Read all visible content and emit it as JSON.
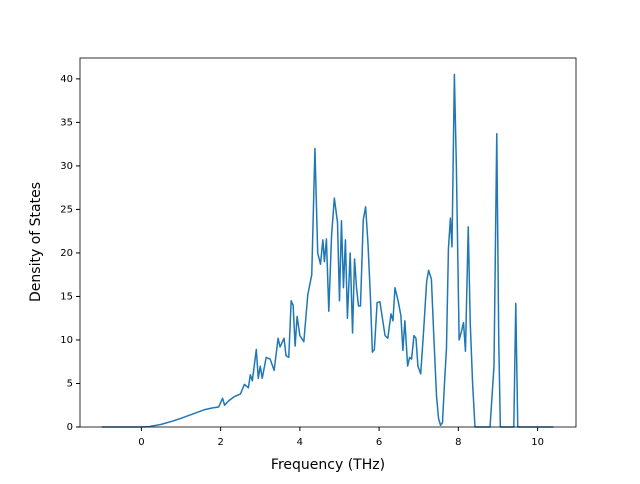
{
  "chart_data": {
    "type": "line",
    "x_label": "Frequency (THz)",
    "y_label": "Density of States",
    "series": [
      {
        "color": "#1f77b4",
        "x": [
          -1.0,
          -0.5,
          0,
          0.2,
          0.5,
          0.8,
          1.0,
          1.3,
          1.6,
          1.8,
          1.95,
          2.05,
          2.1,
          2.2,
          2.35,
          2.5,
          2.6,
          2.7,
          2.75,
          2.8,
          2.9,
          2.95,
          3.0,
          3.05,
          3.15,
          3.25,
          3.35,
          3.45,
          3.5,
          3.6,
          3.65,
          3.72,
          3.78,
          3.83,
          3.88,
          3.93,
          4.0,
          4.1,
          4.2,
          4.3,
          4.38,
          4.45,
          4.52,
          4.58,
          4.62,
          4.67,
          4.73,
          4.8,
          4.87,
          4.95,
          5.0,
          5.05,
          5.1,
          5.15,
          5.2,
          5.27,
          5.33,
          5.38,
          5.43,
          5.48,
          5.53,
          5.6,
          5.66,
          5.72,
          5.78,
          5.83,
          5.88,
          5.95,
          6.02,
          6.1,
          6.15,
          6.22,
          6.3,
          6.35,
          6.4,
          6.48,
          6.55,
          6.6,
          6.65,
          6.72,
          6.77,
          6.82,
          6.88,
          6.93,
          6.98,
          7.05,
          7.12,
          7.2,
          7.25,
          7.32,
          7.38,
          7.45,
          7.5,
          7.55,
          7.6,
          7.65,
          7.7,
          7.75,
          7.8,
          7.84,
          7.9,
          7.95,
          8.02,
          8.08,
          8.13,
          8.18,
          8.25,
          8.3,
          8.36,
          8.42,
          8.8,
          8.9,
          8.97,
          9.02,
          9.06,
          9.4,
          9.45,
          9.5,
          10.4
        ],
        "values": [
          0,
          0,
          0,
          0.05,
          0.3,
          0.7,
          1.0,
          1.5,
          2.0,
          2.2,
          2.3,
          3.3,
          2.5,
          3.0,
          3.5,
          3.8,
          4.9,
          4.5,
          6.0,
          5.3,
          8.9,
          5.6,
          7.0,
          5.6,
          8.0,
          7.8,
          6.5,
          10.2,
          9.2,
          10.2,
          8.2,
          8.0,
          14.5,
          14.0,
          9.3,
          12.7,
          10.5,
          9.8,
          15.2,
          17.5,
          32.0,
          20.0,
          18.7,
          21.5,
          19.0,
          21.6,
          13.3,
          22.0,
          26.3,
          23.5,
          14.5,
          23.7,
          16.0,
          21.5,
          12.5,
          20.0,
          10.8,
          19.3,
          16.0,
          13.9,
          13.9,
          23.8,
          25.3,
          21.0,
          15.0,
          8.6,
          8.9,
          14.3,
          14.4,
          12.0,
          10.5,
          10.2,
          13.0,
          12.2,
          16.0,
          14.5,
          12.8,
          8.8,
          12.2,
          7.0,
          8.0,
          7.8,
          10.5,
          10.2,
          7.0,
          6.1,
          10.8,
          16.7,
          18.0,
          17.0,
          10.5,
          3.5,
          1.0,
          0.2,
          0.5,
          5.0,
          9.0,
          20.5,
          24.0,
          20.7,
          40.5,
          30.0,
          10.0,
          11.0,
          12.0,
          8.7,
          23.0,
          12.0,
          5.0,
          0,
          0,
          7.0,
          33.7,
          10.0,
          0,
          0,
          14.2,
          0,
          0
        ]
      }
    ],
    "xlim": [
      -1.55,
      10.97
    ],
    "xticks": [
      0,
      2,
      4,
      6,
      8,
      10
    ],
    "ylim": [
      0,
      42.4
    ],
    "yticks": [
      0,
      5,
      10,
      15,
      20,
      25,
      30,
      35,
      40
    ]
  }
}
